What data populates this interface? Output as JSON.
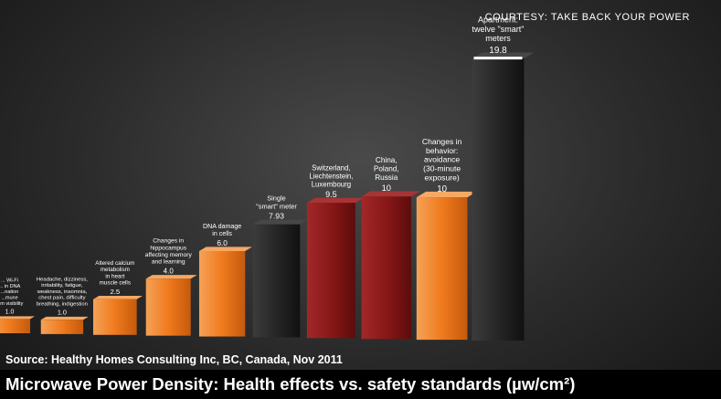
{
  "credit": "COURTESY: TAKE BACK YOUR POWER",
  "source": "Source: Healthy Homes Consulting Inc, BC, Canada, Nov 2011",
  "title": "Microwave Power Density: Health effects vs. safety standards (µw/cm²)",
  "colors": {
    "effect": "#f07a1e",
    "meter": "#2a2a2a",
    "standard": "#8c1a1a"
  },
  "chart_data": {
    "type": "bar",
    "title": "Microwave Power Density: Health effects vs. safety standards (µw/cm²)",
    "xlabel": "",
    "ylabel": "",
    "ylim": [
      0,
      20
    ],
    "grid": false,
    "legend": "none",
    "bars": [
      {
        "label": [
          "... Wi-Fi",
          "... in DNA",
          "...nation",
          "...mune",
          "...m visibility"
        ],
        "value": 1.0,
        "value_label": "1.0",
        "kind": "effect"
      },
      {
        "label": [
          "Headache, dizziness,",
          "irritability, fatigue,",
          "weakness, insomnia,",
          "chest pain, difficulty",
          "breathing, indigestion"
        ],
        "value": 1.0,
        "value_label": "1.0",
        "kind": "effect"
      },
      {
        "label": [
          "Altered calcium",
          "metabolism",
          "in heart",
          "muscle cells"
        ],
        "value": 2.5,
        "value_label": "2.5",
        "kind": "effect"
      },
      {
        "label": [
          "Changes in",
          "hippocampus",
          "affecting memory",
          "and learning"
        ],
        "value": 4.0,
        "value_label": "4.0",
        "kind": "effect"
      },
      {
        "label": [
          "DNA damage",
          "in cells"
        ],
        "value": 6.0,
        "value_label": "6.0",
        "kind": "effect"
      },
      {
        "label": [
          "Single",
          "\"smart\" meter"
        ],
        "value": 7.93,
        "value_label": "7.93",
        "kind": "meter"
      },
      {
        "label": [
          "Switzerland,",
          "Liechtenstein,",
          "Luxembourg"
        ],
        "value": 9.5,
        "value_label": "9.5",
        "kind": "standard"
      },
      {
        "label": [
          "China,",
          "Poland,",
          "Russia"
        ],
        "value": 10,
        "value_label": "10",
        "kind": "standard"
      },
      {
        "label": [
          "Changes in",
          "behavior:",
          "avoidance",
          "(30-minute",
          "exposure)"
        ],
        "value": 10,
        "value_label": "10",
        "kind": "effect"
      },
      {
        "label": [
          "Apartment:",
          "twelve \"smart\"",
          "meters"
        ],
        "value": 19.8,
        "value_label": "19.8",
        "kind": "meter"
      }
    ]
  }
}
